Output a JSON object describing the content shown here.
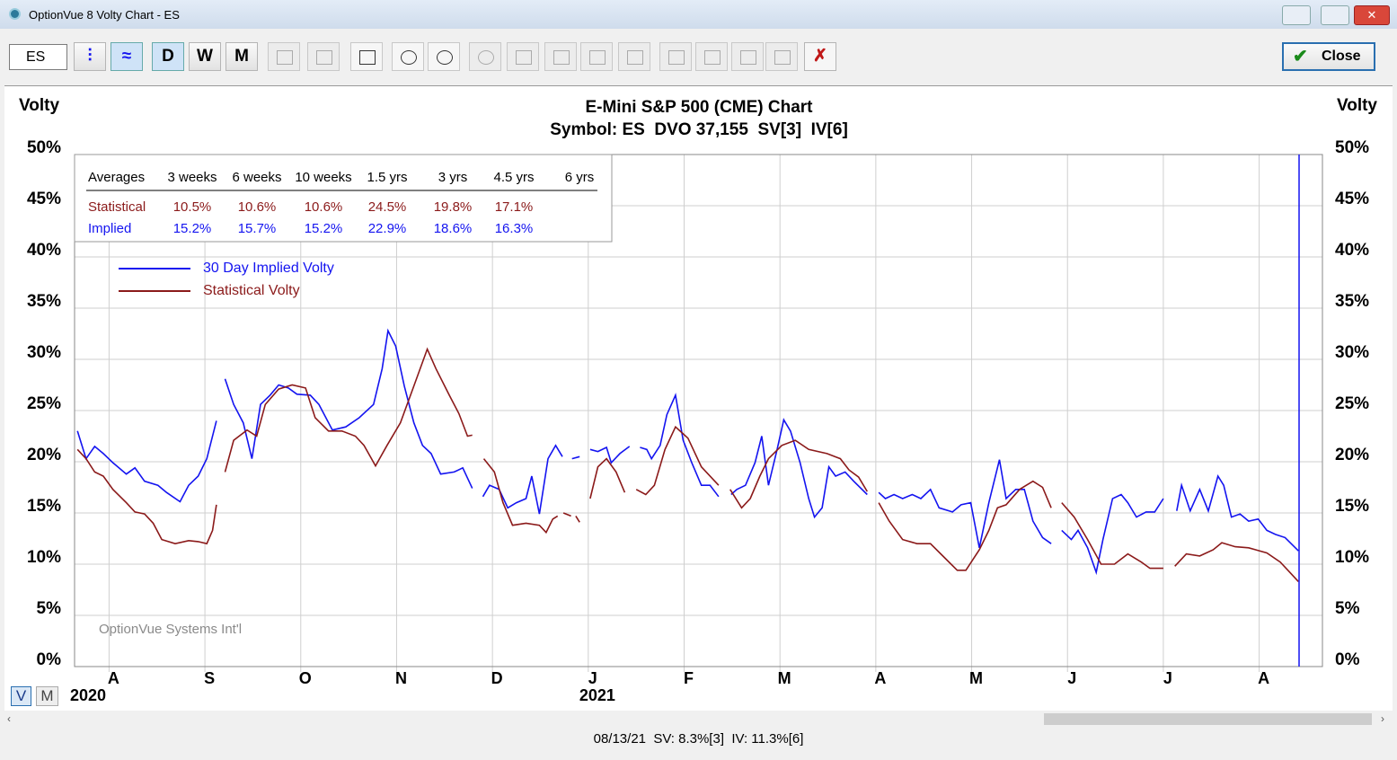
{
  "window": {
    "title": "OptionVue 8 Volty Chart - ES"
  },
  "toolbar": {
    "symbol": "ES",
    "periods": [
      "D",
      "W",
      "M"
    ],
    "close": "Close"
  },
  "view_buttons": [
    "V",
    "M"
  ],
  "watermark": "OptionVue Systems Int'l",
  "status_bar": "08/13/21  SV: 8.3%[3]  IV: 11.3%[6]",
  "averages": {
    "header": [
      "Averages",
      "3 weeks",
      "6 weeks",
      "10 weeks",
      "1.5 yrs",
      "3 yrs",
      "4.5 yrs",
      "6 yrs"
    ],
    "rows": [
      {
        "label": "Statistical",
        "values": [
          "10.5%",
          "10.6%",
          "10.6%",
          "24.5%",
          "19.8%",
          "17.1%"
        ]
      },
      {
        "label": "Implied",
        "values": [
          "15.2%",
          "15.7%",
          "15.2%",
          "22.9%",
          "18.6%",
          "16.3%"
        ]
      }
    ]
  },
  "chart_data": {
    "type": "line",
    "title": "E-Mini S&P 500 (CME) Chart",
    "subtitle": "Symbol: ES  DVO 37,155  SV[3]  IV[6]",
    "y_label": "Volty",
    "grid": true,
    "xlim": [
      0.64,
      13.66
    ],
    "xticks": [
      {
        "value": 1,
        "label": "A"
      },
      {
        "value": 2,
        "label": "S"
      },
      {
        "value": 3,
        "label": "O"
      },
      {
        "value": 4,
        "label": "N"
      },
      {
        "value": 5,
        "label": "D"
      },
      {
        "value": 6,
        "label": "J"
      },
      {
        "value": 7,
        "label": "F"
      },
      {
        "value": 8,
        "label": "M"
      },
      {
        "value": 9,
        "label": "A"
      },
      {
        "value": 10,
        "label": "M"
      },
      {
        "value": 11,
        "label": "J"
      },
      {
        "value": 12,
        "label": "J"
      },
      {
        "value": 13,
        "label": "A"
      }
    ],
    "year_labels": [
      {
        "value": 1,
        "label": "2020"
      },
      {
        "value": 6,
        "label": "2021"
      }
    ],
    "ylim": [
      0,
      50
    ],
    "yticks": [
      {
        "value": 0,
        "label": "0%"
      },
      {
        "value": 5,
        "label": "5%"
      },
      {
        "value": 10,
        "label": "10%"
      },
      {
        "value": 15,
        "label": "15%"
      },
      {
        "value": 20,
        "label": "20%"
      },
      {
        "value": 25,
        "label": "25%"
      },
      {
        "value": 30,
        "label": "30%"
      },
      {
        "value": 35,
        "label": "35%"
      },
      {
        "value": 40,
        "label": "40%"
      },
      {
        "value": 45,
        "label": "45%"
      },
      {
        "value": 50,
        "label": "50%"
      }
    ],
    "series": [
      {
        "name": "30 Day Implied Volty",
        "color": "#1414f0",
        "x": [
          0.67,
          0.76,
          0.85,
          0.94,
          1.04,
          1.18,
          1.27,
          1.37,
          1.51,
          1.6,
          1.74,
          1.83,
          1.93,
          2.02,
          2.12,
          2.17,
          2.21,
          2.3,
          2.4,
          2.49,
          2.58,
          2.68,
          2.77,
          2.87,
          2.96,
          3.1,
          3.19,
          3.33,
          3.47,
          3.61,
          3.76,
          3.85,
          3.91,
          3.99,
          4.08,
          4.18,
          4.27,
          4.36,
          4.46,
          4.6,
          4.69,
          4.79,
          4.85,
          4.9,
          4.97,
          5.07,
          5.16,
          5.25,
          5.35,
          5.41,
          5.49,
          5.58,
          5.66,
          5.73,
          5.78,
          5.83,
          5.91,
          5.96,
          6.02,
          6.1,
          6.19,
          6.24,
          6.33,
          6.43,
          6.48,
          6.54,
          6.61,
          6.66,
          6.75,
          6.82,
          6.91,
          6.99,
          7.08,
          7.18,
          7.27,
          7.36,
          7.42,
          7.49,
          7.55,
          7.64,
          7.74,
          7.81,
          7.88,
          7.97,
          8.04,
          8.11,
          8.21,
          8.3,
          8.36,
          8.44,
          8.51,
          8.58,
          8.68,
          8.77,
          8.91,
          8.97,
          9.03,
          9.1,
          9.19,
          9.28,
          9.38,
          9.47,
          9.57,
          9.66,
          9.8,
          9.89,
          9.99,
          10.08,
          10.18,
          10.29,
          10.36,
          10.46,
          10.55,
          10.64,
          10.74,
          10.83,
          10.89,
          10.94,
          11.04,
          11.11,
          11.21,
          11.3,
          11.37,
          11.47,
          11.56,
          11.63,
          11.72,
          11.82,
          11.91,
          12.0,
          12.07,
          12.14,
          12.19,
          12.28,
          12.38,
          12.47,
          12.57,
          12.63,
          12.71,
          12.8,
          12.89,
          12.99,
          13.08,
          13.17,
          13.27,
          13.41
        ],
        "values": [
          23.0,
          20.3,
          21.5,
          20.8,
          19.9,
          18.8,
          19.4,
          18.1,
          17.7,
          17.0,
          16.1,
          17.7,
          18.6,
          20.3,
          24.0,
          null,
          28.1,
          25.6,
          23.8,
          20.3,
          25.6,
          26.5,
          27.5,
          27.2,
          26.6,
          26.5,
          25.6,
          23.1,
          23.4,
          24.3,
          25.6,
          29.1,
          32.8,
          31.3,
          27.4,
          23.8,
          21.6,
          20.8,
          18.8,
          19.0,
          19.4,
          17.4,
          null,
          16.6,
          17.7,
          17.3,
          15.5,
          16.0,
          16.4,
          18.6,
          14.9,
          20.3,
          21.6,
          20.5,
          null,
          20.3,
          20.5,
          null,
          21.2,
          21.0,
          21.4,
          19.9,
          20.8,
          21.5,
          null,
          21.4,
          21.2,
          20.3,
          21.6,
          24.6,
          26.5,
          22.1,
          19.9,
          17.7,
          17.7,
          16.6,
          null,
          16.8,
          17.3,
          17.7,
          19.9,
          22.5,
          17.7,
          21.2,
          24.1,
          23.0,
          19.9,
          16.4,
          14.6,
          15.5,
          19.5,
          18.6,
          19.0,
          18.1,
          16.8,
          null,
          17.0,
          16.4,
          16.8,
          16.4,
          16.8,
          16.4,
          17.3,
          15.5,
          15.1,
          15.8,
          16.0,
          11.6,
          16.0,
          20.2,
          16.4,
          17.3,
          17.3,
          14.2,
          12.6,
          12.0,
          null,
          13.3,
          12.4,
          13.3,
          11.6,
          9.2,
          12.4,
          16.4,
          16.8,
          16.0,
          14.6,
          15.1,
          15.1,
          16.4,
          null,
          15.2,
          17.7,
          15.2,
          17.3,
          15.2,
          18.6,
          17.7,
          14.6,
          14.9,
          14.2,
          14.4,
          13.3,
          12.9,
          12.6,
          11.3
        ]
      },
      {
        "name": "Statistical Volty",
        "color": "#8b1a1a",
        "x": [
          0.67,
          0.76,
          0.85,
          0.94,
          1.04,
          1.18,
          1.27,
          1.37,
          1.46,
          1.55,
          1.69,
          1.83,
          1.93,
          2.02,
          2.08,
          2.12,
          2.17,
          2.21,
          2.3,
          2.44,
          2.54,
          2.63,
          2.77,
          2.91,
          3.05,
          3.15,
          3.29,
          3.43,
          3.57,
          3.66,
          3.78,
          3.9,
          4.04,
          4.18,
          4.32,
          4.41,
          4.55,
          4.65,
          4.74,
          4.79,
          4.85,
          4.91,
          5.02,
          5.11,
          5.21,
          5.35,
          5.49,
          5.56,
          5.63,
          5.68,
          5.71,
          5.74,
          5.82,
          5.85,
          5.87,
          5.91,
          5.96,
          6.02,
          6.1,
          6.19,
          6.29,
          6.38,
          6.44,
          6.5,
          6.6,
          6.69,
          6.8,
          6.91,
          7.04,
          7.18,
          7.36,
          7.42,
          7.48,
          7.6,
          7.69,
          7.79,
          7.88,
          8.02,
          8.16,
          8.3,
          8.49,
          8.63,
          8.72,
          8.82,
          8.91,
          8.97,
          9.03,
          9.14,
          9.28,
          9.43,
          9.57,
          9.71,
          9.85,
          9.94,
          10.08,
          10.18,
          10.27,
          10.36,
          10.5,
          10.64,
          10.74,
          10.83,
          10.89,
          10.94,
          11.07,
          11.21,
          11.35,
          11.49,
          11.63,
          11.77,
          11.86,
          12.0,
          12.06,
          12.12,
          12.24,
          12.38,
          12.52,
          12.61,
          12.75,
          12.89,
          13.08,
          13.22,
          13.41
        ],
        "values": [
          21.2,
          20.3,
          19.0,
          18.6,
          17.3,
          16.0,
          15.1,
          14.9,
          14.0,
          12.4,
          12.0,
          12.3,
          12.2,
          12.0,
          13.3,
          15.8,
          null,
          19.0,
          22.1,
          23.1,
          22.5,
          25.6,
          27.1,
          27.5,
          27.2,
          24.3,
          23.0,
          23.0,
          22.5,
          21.6,
          19.6,
          21.6,
          23.8,
          27.4,
          31.0,
          29.1,
          26.5,
          24.7,
          22.5,
          22.6,
          null,
          20.3,
          19.0,
          16.0,
          13.8,
          14.0,
          13.8,
          13.1,
          14.4,
          14.7,
          null,
          15.0,
          14.7,
          null,
          14.7,
          14.1,
          null,
          16.4,
          19.5,
          20.3,
          19.0,
          17.0,
          null,
          17.3,
          16.8,
          17.7,
          21.2,
          23.4,
          22.3,
          19.5,
          17.7,
          null,
          17.3,
          15.5,
          16.4,
          18.6,
          20.3,
          21.6,
          22.1,
          21.2,
          20.8,
          20.3,
          19.2,
          18.5,
          17.1,
          null,
          16.0,
          14.2,
          12.4,
          12.0,
          12.0,
          10.7,
          9.4,
          9.4,
          11.4,
          13.3,
          15.5,
          15.8,
          17.3,
          18.1,
          17.5,
          15.5,
          null,
          16.0,
          14.6,
          12.4,
          10.0,
          10.0,
          11.0,
          10.2,
          9.6,
          9.6,
          null,
          9.8,
          11.0,
          10.8,
          11.4,
          12.1,
          11.7,
          11.6,
          11.1,
          10.2,
          8.3
        ]
      }
    ]
  }
}
